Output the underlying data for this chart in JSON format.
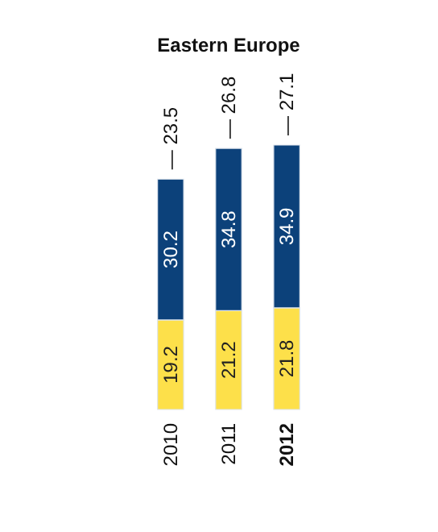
{
  "chart_data": {
    "type": "bar",
    "title": "Eastern Europe",
    "categories": [
      "2010",
      "2011",
      "2012"
    ],
    "stacked": true,
    "data_labels": true,
    "series": [
      {
        "color": "#fde04a",
        "values": [
          19.2,
          21.2,
          21.8
        ]
      },
      {
        "color": "#0c417a",
        "values": [
          30.2,
          34.8,
          34.9
        ]
      }
    ],
    "annotations": [
      "— 23.5",
      "— 26.8",
      "— 27.1"
    ]
  }
}
